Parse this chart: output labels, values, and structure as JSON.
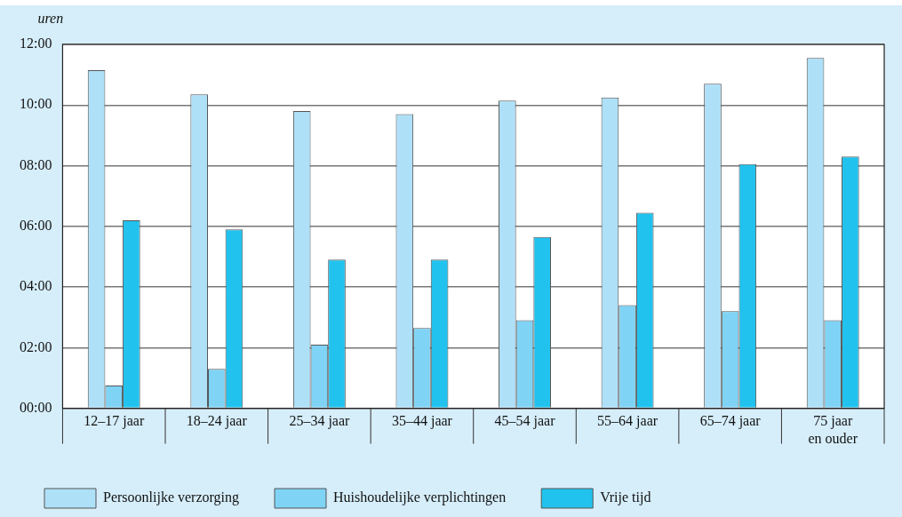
{
  "chart_data": {
    "type": "bar",
    "ylabel": "uren",
    "categories": [
      "12–17 jaar",
      "18–24 jaar",
      "25–34 jaar",
      "35–44 jaar",
      "45–54 jaar",
      "55–64 jaar",
      "65–74 jaar",
      "75 jaar en ouder"
    ],
    "series": [
      {
        "name": "Persoonlijke verzorging",
        "color": "#aee0f8",
        "values": [
          11.15,
          10.35,
          9.8,
          9.7,
          10.15,
          10.25,
          10.7,
          11.55
        ]
      },
      {
        "name": "Huishoudelijke verplichtingen",
        "color": "#7fd3f5",
        "values": [
          0.75,
          1.3,
          2.1,
          2.65,
          2.9,
          3.4,
          3.2,
          2.9
        ]
      },
      {
        "name": "Vrije tijd",
        "color": "#21c2ee",
        "values": [
          6.2,
          5.9,
          4.9,
          4.9,
          5.65,
          6.45,
          8.05,
          8.3
        ]
      }
    ],
    "ylim": [
      0,
      12
    ],
    "yticks": [
      {
        "value": 0,
        "label": "00:00"
      },
      {
        "value": 2,
        "label": "02:00"
      },
      {
        "value": 4,
        "label": "04:00"
      },
      {
        "value": 6,
        "label": "06:00"
      },
      {
        "value": 8,
        "label": "08:00"
      },
      {
        "value": 10,
        "label": "10:00"
      },
      {
        "value": 12,
        "label": "12:00"
      }
    ],
    "grid": "y",
    "legend": "bottom"
  }
}
